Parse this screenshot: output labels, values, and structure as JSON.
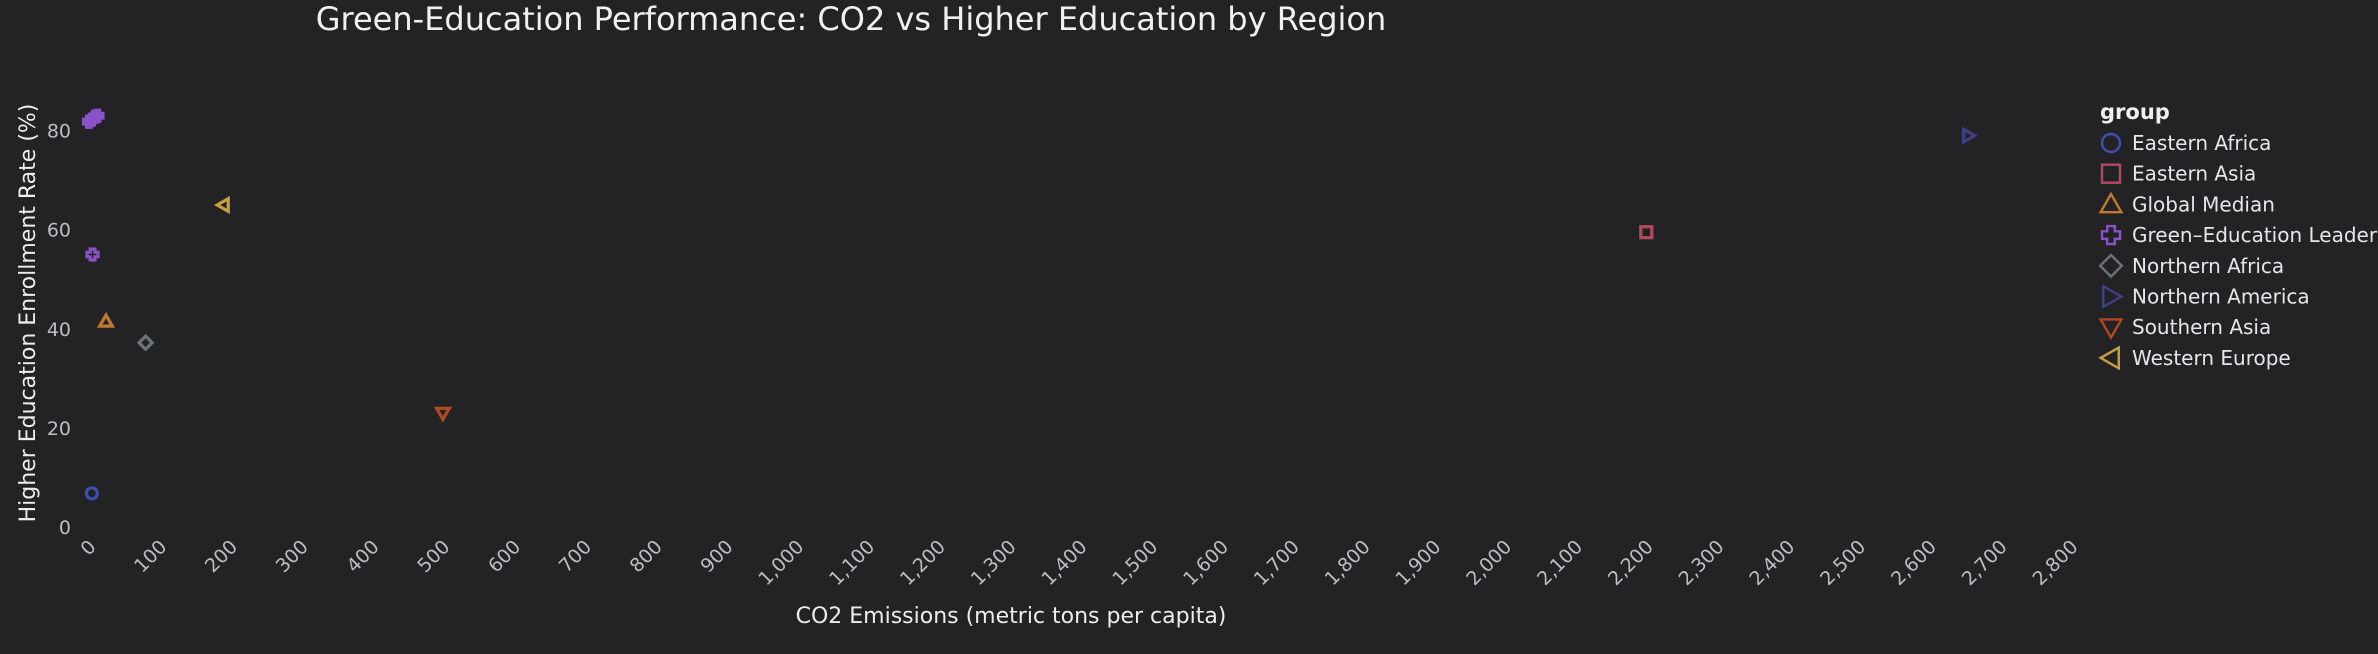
{
  "chart_data": {
    "type": "scatter",
    "title": "Green-Education Performance: CO2 vs Higher Education by Region",
    "xlabel": "CO2 Emissions (metric tons per capita)",
    "ylabel": "Higher Education Enrollment Rate (%)",
    "xlim": [
      0,
      2800
    ],
    "ylim": [
      0,
      88
    ],
    "x_ticks": [
      0,
      100,
      200,
      300,
      400,
      500,
      600,
      700,
      800,
      900,
      1000,
      1100,
      1200,
      1300,
      1400,
      1500,
      1600,
      1700,
      1800,
      1900,
      2000,
      2100,
      2200,
      2300,
      2400,
      2500,
      2600,
      2700,
      2800
    ],
    "x_tick_labels": [
      "0",
      "100",
      "200",
      "300",
      "400",
      "500",
      "600",
      "700",
      "800",
      "900",
      "1,000",
      "1,100",
      "1,200",
      "1,300",
      "1,400",
      "1,500",
      "1,600",
      "1,700",
      "1,800",
      "1,900",
      "2,000",
      "2,100",
      "2,200",
      "2,300",
      "2,400",
      "2,500",
      "2,600",
      "2,700",
      "2,800"
    ],
    "y_ticks": [
      0,
      20,
      40,
      60,
      80
    ],
    "y_tick_labels": [
      "0",
      "20",
      "40",
      "60",
      "80"
    ],
    "grid": false,
    "legend_title": "group",
    "legend_position": "right",
    "series": [
      {
        "name": "Eastern Africa",
        "marker": "circle",
        "color": "#3a4fb0",
        "points": [
          {
            "x": 4,
            "y": 6.8
          }
        ]
      },
      {
        "name": "Eastern Asia",
        "marker": "square",
        "color": "#b04a5e",
        "points": [
          {
            "x": 2200,
            "y": 59.5
          }
        ]
      },
      {
        "name": "Global Median",
        "marker": "triangle-up",
        "color": "#c07a2e",
        "points": [
          {
            "x": 24,
            "y": 41.5
          }
        ]
      },
      {
        "name": "Green–Education Leader",
        "marker": "plus",
        "color": "#8a52c8",
        "points": [
          {
            "x": 0,
            "y": 81.8
          },
          {
            "x": 4,
            "y": 82.2
          },
          {
            "x": 8,
            "y": 82.8
          },
          {
            "x": 12,
            "y": 83.0
          },
          {
            "x": 5,
            "y": 55.0
          }
        ]
      },
      {
        "name": "Northern Africa",
        "marker": "diamond",
        "color": "#6b7478",
        "points": [
          {
            "x": 80,
            "y": 37.2
          }
        ]
      },
      {
        "name": "Northern America",
        "marker": "triangle-right",
        "color": "#3f3f86",
        "points": [
          {
            "x": 2655,
            "y": 79.0
          }
        ]
      },
      {
        "name": "Southern Asia",
        "marker": "triangle-down",
        "color": "#b04a1e",
        "points": [
          {
            "x": 500,
            "y": 23.0
          }
        ]
      },
      {
        "name": "Western Europe",
        "marker": "triangle-left",
        "color": "#c9a040",
        "points": [
          {
            "x": 190,
            "y": 65.0
          }
        ]
      }
    ]
  }
}
